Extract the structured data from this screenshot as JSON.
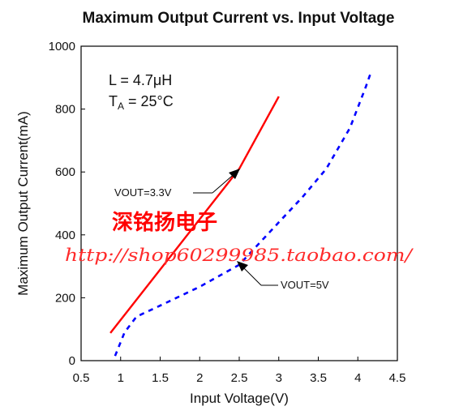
{
  "chart_data": {
    "type": "line",
    "title": "Maximum Output Current vs. Input Voltage",
    "xlabel": "Input Voltage(V)",
    "ylabel": "Maximum Output Current(mA)",
    "xlim": [
      0.5,
      4.5
    ],
    "ylim": [
      0,
      1000
    ],
    "xticks": [
      "0.5",
      "1",
      "1.5",
      "2",
      "2.5",
      "3",
      "3.5",
      "4",
      "4.5"
    ],
    "yticks": [
      "0",
      "200",
      "400",
      "600",
      "800",
      "1000"
    ],
    "grid": false,
    "annotations": {
      "inductance": "L = 4.7μH",
      "temperature": "T",
      "temperature_sub": "A",
      "temperature_rest": " = 25°C"
    },
    "series": [
      {
        "name": "VOUT=3.3V",
        "style": "solid",
        "color": "#ff0000",
        "x": [
          0.87,
          2.5,
          3.0
        ],
        "y": [
          88,
          610,
          840
        ]
      },
      {
        "name": "VOUT=5V",
        "style": "dashed",
        "color": "#0000ff",
        "x": [
          0.93,
          1.05,
          1.2,
          1.5,
          2.0,
          2.5,
          3.0,
          3.3,
          3.6,
          3.9,
          4.1,
          4.17
        ],
        "y": [
          15,
          90,
          140,
          175,
          235,
          305,
          440,
          520,
          610,
          740,
          870,
          920
        ]
      }
    ]
  },
  "watermark": {
    "chinese": "深铭扬电子",
    "url": "http://shop60299985.taobao.com/",
    "color": "#ff0000"
  }
}
